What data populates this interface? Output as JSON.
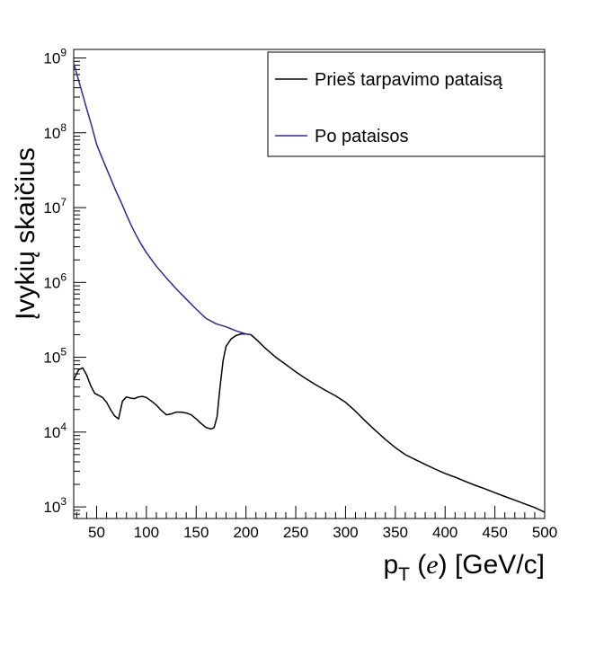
{
  "chart_data": {
    "type": "line",
    "xlabel": {
      "main": "p",
      "sub": "T",
      "var": "e",
      "unit": "[GeV/c]"
    },
    "ylabel": "Įvykių skaičius",
    "xlim": [
      27,
      500
    ],
    "ylim": [
      700,
      1300000000
    ],
    "yscale": "log",
    "x_ticks": [
      50,
      100,
      150,
      200,
      250,
      300,
      350,
      400,
      450,
      500
    ],
    "y_ticks": [
      {
        "value": 1000,
        "base": "10",
        "exp": "3"
      },
      {
        "value": 10000,
        "base": "10",
        "exp": "4"
      },
      {
        "value": 100000,
        "base": "10",
        "exp": "5"
      },
      {
        "value": 1000000,
        "base": "10",
        "exp": "6"
      },
      {
        "value": 10000000,
        "base": "10",
        "exp": "7"
      },
      {
        "value": 100000000,
        "base": "10",
        "exp": "8"
      },
      {
        "value": 1000000000,
        "base": "10",
        "exp": "9"
      }
    ],
    "grid": false,
    "legend_position": "top-right",
    "series": [
      {
        "name": "Prieš tarpavimo pataisą",
        "color": "#000000",
        "x": [
          27,
          32,
          36,
          40,
          44,
          48,
          52,
          56,
          60,
          64,
          68,
          72,
          76,
          80,
          84,
          88,
          92,
          96,
          100,
          105,
          110,
          115,
          120,
          125,
          130,
          135,
          140,
          145,
          150,
          155,
          160,
          165,
          168,
          171,
          174,
          177,
          180,
          185,
          190,
          195,
          200,
          205,
          210,
          220,
          230,
          240,
          250,
          260,
          270,
          280,
          290,
          300,
          310,
          320,
          330,
          340,
          350,
          360,
          370,
          380,
          390,
          400,
          410,
          420,
          430,
          440,
          450,
          460,
          470,
          480,
          490,
          500
        ],
        "y": [
          50000,
          68000,
          72000,
          58000,
          42000,
          33000,
          31000,
          29000,
          25000,
          20000,
          16500,
          15000,
          26000,
          29500,
          28500,
          28000,
          29500,
          30000,
          29000,
          26000,
          23000,
          19500,
          17000,
          17500,
          18500,
          18500,
          18000,
          17000,
          15000,
          13000,
          11500,
          11000,
          11500,
          16000,
          40000,
          90000,
          140000,
          175000,
          195000,
          205000,
          205000,
          200000,
          175000,
          130000,
          100000,
          80000,
          64000,
          52000,
          43000,
          36000,
          30500,
          25000,
          19000,
          14000,
          10500,
          8000,
          6200,
          5000,
          4300,
          3700,
          3200,
          2800,
          2500,
          2200,
          1950,
          1750,
          1550,
          1380,
          1230,
          1100,
          980,
          850
        ]
      },
      {
        "name": "Po pataisos",
        "color": "#2b2b8f",
        "x": [
          27,
          30,
          35,
          40,
          45,
          50,
          55,
          60,
          65,
          70,
          75,
          80,
          85,
          90,
          95,
          100,
          110,
          120,
          130,
          140,
          150,
          160,
          170,
          180,
          190,
          200,
          205
        ],
        "y": [
          850000000,
          620000000,
          360000000,
          210000000,
          125000000,
          70000000,
          48000000,
          33000000,
          23000000,
          16000000,
          11500000,
          8000000,
          5700000,
          4200000,
          3200000,
          2500000,
          1650000,
          1150000,
          820000,
          600000,
          440000,
          330000,
          280000,
          255000,
          225000,
          205000,
          200000
        ]
      }
    ]
  }
}
